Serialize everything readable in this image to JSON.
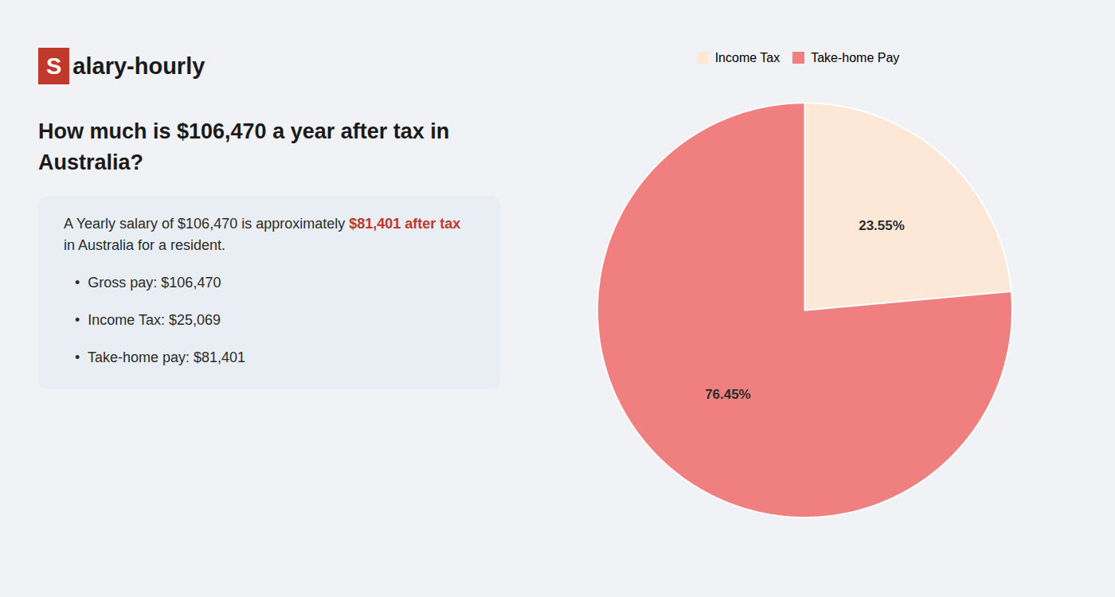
{
  "chart_data": {
    "type": "pie",
    "title": "How much is $106,470 a year after tax in Australia?",
    "categories": [
      "Income Tax",
      "Take-home Pay"
    ],
    "values": [
      23.55,
      76.45
    ],
    "value_labels": [
      "23.55%",
      "76.45%"
    ],
    "data_labels": true,
    "colors": [
      "#fde8d8",
      "#f08080"
    ],
    "legend": "top",
    "annotations": [
      {
        "text": "S",
        "color": "#c0392b"
      },
      {
        "text": "alary-hourly"
      },
      {
        "text": "A Yearly salary of $106,470 is approximately "
      },
      {
        "text": "$81,401 after tax",
        "color": "#c0392b"
      },
      {
        "text": "in Australia for a resident."
      },
      {
        "text": "•  Gross pay: $106,470"
      },
      {
        "text": "•  Income Tax: $25,069"
      },
      {
        "text": "•  Take-home pay: $81,401"
      }
    ]
  }
}
